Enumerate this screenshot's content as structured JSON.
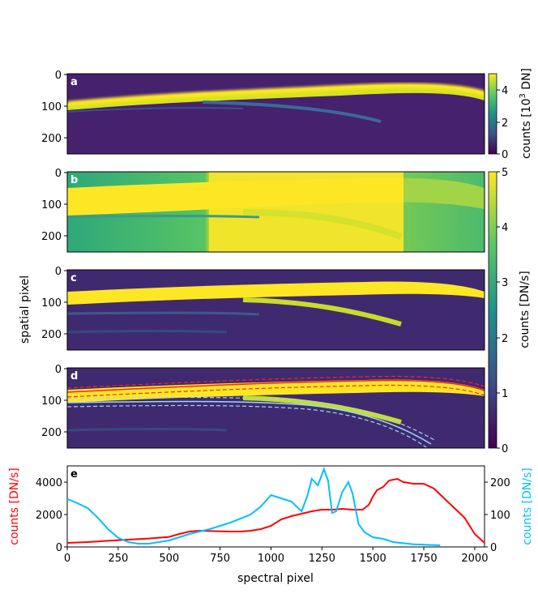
{
  "figure": {
    "panels": [
      {
        "letter": "a",
        "yticks": [
          "0",
          "100",
          "200"
        ]
      },
      {
        "letter": "b",
        "yticks": [
          "0",
          "100",
          "200"
        ]
      },
      {
        "letter": "c",
        "yticks": [
          "0",
          "100",
          "200"
        ]
      },
      {
        "letter": "d",
        "yticks": [
          "0",
          "100",
          "200"
        ]
      }
    ],
    "ylabel_images": "spatial pixel",
    "colorbar_a": {
      "label_prefix": "counts [10",
      "label_sup": "3",
      "label_suffix": " DN]",
      "ticks": [
        "0",
        "2",
        "4"
      ]
    },
    "colorbar_b": {
      "label": "counts [DN/s]",
      "ticks": [
        "0",
        "1",
        "2",
        "3",
        "4",
        "5"
      ]
    },
    "colors": {
      "left_axis": "#ff0000",
      "right_axis": "#00bfff",
      "fit_line": "#ff2020",
      "cyan_fit": "#9ad8ff"
    }
  },
  "chart_data": {
    "type": "line",
    "panel_letter": "e",
    "xlabel": "spectral pixel",
    "ylabel_left": "counts [DN/s]",
    "ylabel_right": "counts [DN/s]",
    "xlim": [
      0,
      2048
    ],
    "ylim_left": [
      0,
      5000
    ],
    "ylim_right": [
      0,
      250
    ],
    "xticks": [
      "0",
      "250",
      "500",
      "750",
      "1000",
      "1250",
      "1500",
      "1750",
      "2000"
    ],
    "yticks_left": [
      "0",
      "2000",
      "4000"
    ],
    "yticks_right": [
      "0",
      "100",
      "200"
    ],
    "series": [
      {
        "axis": "left",
        "color": "#ff0000",
        "x": [
          0,
          100,
          200,
          300,
          400,
          500,
          550,
          600,
          650,
          700,
          800,
          850,
          900,
          950,
          1000,
          1050,
          1100,
          1150,
          1200,
          1250,
          1300,
          1350,
          1400,
          1450,
          1480,
          1500,
          1520,
          1550,
          1580,
          1620,
          1650,
          1700,
          1750,
          1800,
          1850,
          1900,
          1950,
          2000,
          2048
        ],
        "y": [
          250,
          300,
          380,
          450,
          520,
          620,
          800,
          950,
          1000,
          980,
          950,
          950,
          1000,
          1100,
          1300,
          1700,
          1900,
          2050,
          2200,
          2300,
          2300,
          2350,
          2300,
          2300,
          2600,
          3100,
          3500,
          3700,
          4100,
          4200,
          4000,
          3900,
          3900,
          3600,
          3000,
          2400,
          1800,
          800,
          250
        ]
      },
      {
        "axis": "right",
        "color": "#00bfff",
        "x": [
          0,
          50,
          100,
          150,
          200,
          250,
          300,
          350,
          400,
          500,
          600,
          700,
          800,
          900,
          950,
          1000,
          1050,
          1100,
          1150,
          1180,
          1200,
          1230,
          1260,
          1280,
          1300,
          1320,
          1350,
          1380,
          1400,
          1430,
          1460,
          1500,
          1550,
          1600,
          1700,
          1830
        ],
        "y": [
          148,
          135,
          120,
          90,
          55,
          28,
          15,
          10,
          10,
          20,
          40,
          55,
          75,
          100,
          125,
          160,
          150,
          140,
          110,
          160,
          210,
          190,
          240,
          205,
          105,
          110,
          170,
          200,
          165,
          70,
          45,
          30,
          25,
          15,
          8,
          5
        ]
      }
    ]
  }
}
